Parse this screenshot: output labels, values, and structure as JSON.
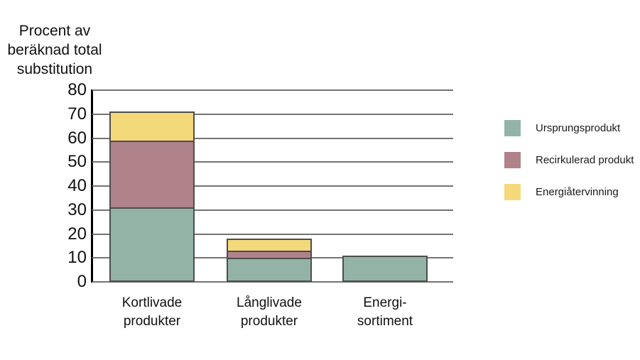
{
  "title": {
    "lines": [
      "Procent av",
      "beräknad total",
      "substitution"
    ]
  },
  "chart_data": {
    "type": "bar",
    "stacked": true,
    "title": "Procent av beräknad total substitution",
    "ylabel": "Procent av beräknad total substitution",
    "xlabel": "",
    "ylim": [
      0,
      80
    ],
    "yticks": [
      0,
      10,
      20,
      30,
      40,
      50,
      60,
      70,
      80
    ],
    "grid": "horizontal",
    "legend_position": "right",
    "categories": [
      "Kortlivade produkter",
      "Långlivade produkter",
      "Energi-sortiment"
    ],
    "category_lines": [
      [
        "Kortlivade",
        "produkter"
      ],
      [
        "Långlivade",
        "produkter"
      ],
      [
        "Energi-",
        "sortiment"
      ]
    ],
    "series": [
      {
        "name": "Ursprungsprodukt",
        "color": "#94B3A7",
        "values": [
          31,
          10,
          11
        ]
      },
      {
        "name": "Recirkulerad produkt",
        "color": "#B0828A",
        "values": [
          28,
          3,
          0
        ]
      },
      {
        "name": "Energiåtervinning",
        "color": "#F4D97A",
        "values": [
          12,
          5,
          0
        ]
      }
    ],
    "stack_totals": [
      71,
      18,
      11
    ]
  },
  "legend": {
    "items": [
      {
        "label": "Ursprungsprodukt",
        "color": "#94B3A7"
      },
      {
        "label": "Recirkulerad produkt",
        "color": "#B0828A"
      },
      {
        "label": "Energiåtervinning",
        "color": "#F4D97A"
      }
    ]
  },
  "colors": {
    "bar_border": "#4d4d4d",
    "gridline": "#737373",
    "axis_line": "#000000",
    "text": "#1a1a1a",
    "background": "#ffffff"
  }
}
